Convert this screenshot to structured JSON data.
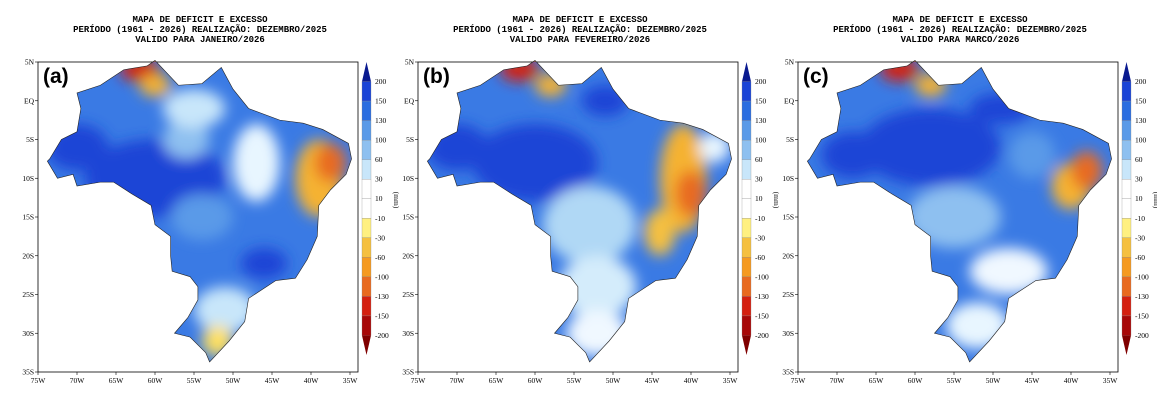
{
  "panels": [
    {
      "label": "(a)",
      "title": [
        "MAPA DE DEFICIT E EXCESSO",
        "PERÍODO (1961 - 2026) REALIZAÇÃO: DEZEMBRO/2025",
        "VALIDO PARA JANEIRO/2026"
      ]
    },
    {
      "label": "(b)",
      "title": [
        "MAPA DE DEFICIT E EXCESSO",
        "PERÍODO (1961 - 2026) REALIZAÇÃO: DEZEMBRO/2025",
        "VALIDO PARA FEVEREIRO/2026"
      ]
    },
    {
      "label": "(c)",
      "title": [
        "MAPA DE DEFICIT E EXCESSO",
        "PERÍODO (1961 - 2026) REALIZAÇÃO: DEZEMBRO/2025",
        "VALIDO PARA MARCO/2026"
      ]
    }
  ],
  "lat_ticks": [
    "5N",
    "EQ",
    "5S",
    "10S",
    "15S",
    "20S",
    "25S",
    "30S",
    "35S"
  ],
  "lon_ticks": [
    "75W",
    "70W",
    "65W",
    "60W",
    "55W",
    "50W",
    "45W",
    "40W",
    "35W"
  ],
  "colorbar": {
    "unit": "(mm)",
    "labels": [
      "200",
      "150",
      "130",
      "100",
      "60",
      "30",
      "10",
      "-10",
      "-30",
      "-60",
      "-100",
      "-130",
      "-150",
      "-200"
    ]
  }
}
